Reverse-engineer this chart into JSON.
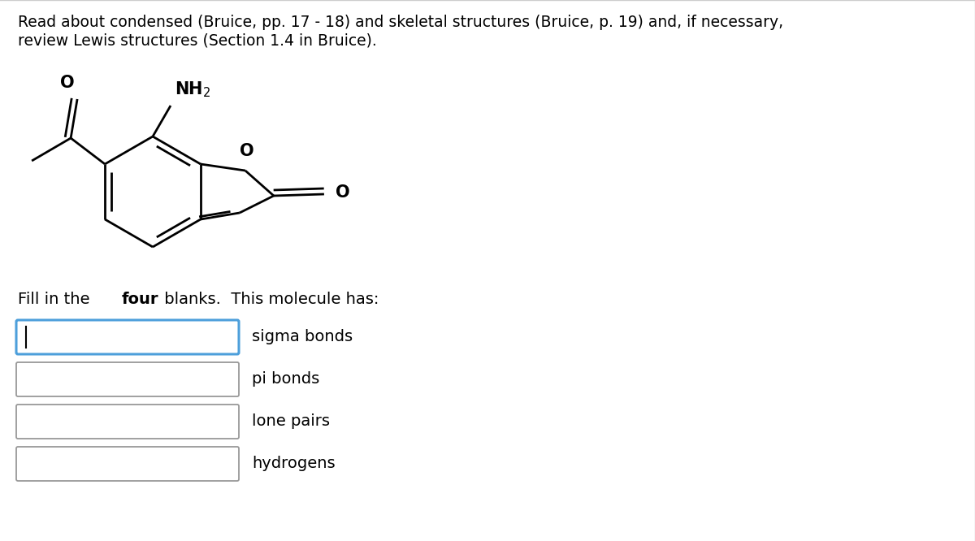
{
  "background_color": "#ffffff",
  "header_text_line1": "Read about condensed (Bruice, pp. 17 - 18) and skeletal structures (Bruice, p. 19) and, if necessary,",
  "header_text_line2": "review Lewis structures (Section 1.4 in Bruice).",
  "header_fontsize": 13.5,
  "blanks": [
    "sigma bonds",
    "pi bonds",
    "lone pairs",
    "hydrogens"
  ],
  "blank_box_color_active": "#4d9fdb",
  "blank_box_color_inactive": "#999999",
  "blank_box_fill": "#ffffff",
  "text_color": "#000000",
  "mol_lw": 2.0,
  "mol_color": "#000000"
}
